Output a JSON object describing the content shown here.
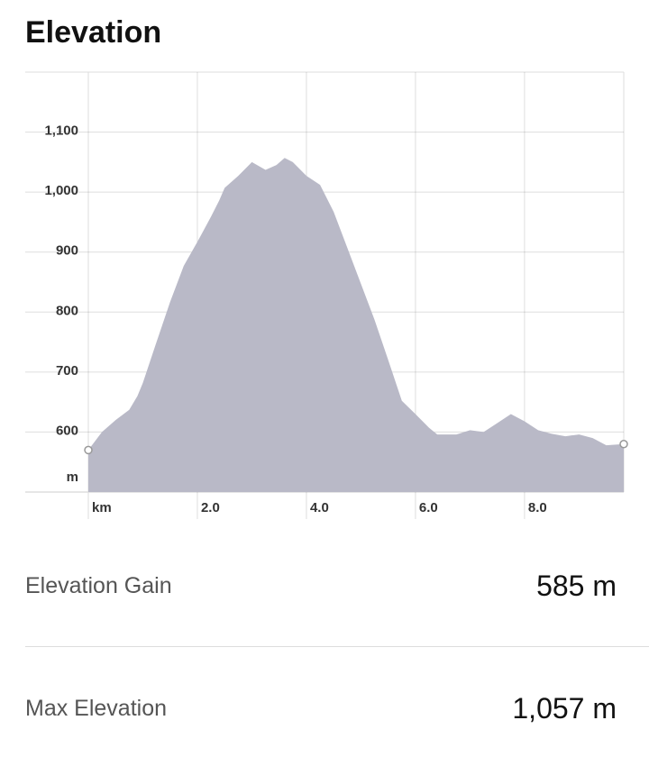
{
  "chart_data": {
    "type": "area",
    "title": "Elevation",
    "xlabel": "km",
    "ylabel": "m",
    "x": [
      0,
      0.25,
      0.5,
      0.75,
      0.9,
      1.0,
      1.25,
      1.5,
      1.75,
      2.0,
      2.25,
      2.4,
      2.5,
      2.75,
      3.0,
      3.25,
      3.45,
      3.6,
      3.75,
      4.0,
      4.25,
      4.5,
      4.75,
      5.0,
      5.25,
      5.5,
      5.75,
      6.0,
      6.25,
      6.4,
      6.75,
      7.0,
      7.25,
      7.5,
      7.75,
      8.0,
      8.25,
      8.5,
      8.75,
      9.0,
      9.25,
      9.5,
      9.82
    ],
    "values": [
      570,
      600,
      620,
      637,
      660,
      682,
      750,
      817,
      877,
      917,
      959,
      986,
      1007,
      1027,
      1050,
      1037,
      1045,
      1057,
      1050,
      1027,
      1012,
      967,
      907,
      847,
      787,
      720,
      652,
      630,
      607,
      596,
      596,
      603,
      600,
      615,
      630,
      618,
      603,
      597,
      593,
      596,
      590,
      578,
      580
    ],
    "color": "#b9b9c7",
    "xlim": [
      0,
      9.82
    ],
    "ylim": [
      500,
      1200
    ],
    "xticks": [
      {
        "value": 2,
        "label": "2.0"
      },
      {
        "value": 4,
        "label": "4.0"
      },
      {
        "value": 6,
        "label": "6.0"
      },
      {
        "value": 8,
        "label": "8.0"
      }
    ],
    "yticks": [
      600,
      700,
      800,
      900,
      {
        "value": 1000,
        "label": "1,000"
      },
      {
        "value": 1100,
        "label": "1,100"
      }
    ],
    "grid": true
  },
  "stats": [
    {
      "label": "Elevation Gain",
      "value": "585 m"
    },
    {
      "label": "Max Elevation",
      "value": "1,057 m"
    }
  ]
}
